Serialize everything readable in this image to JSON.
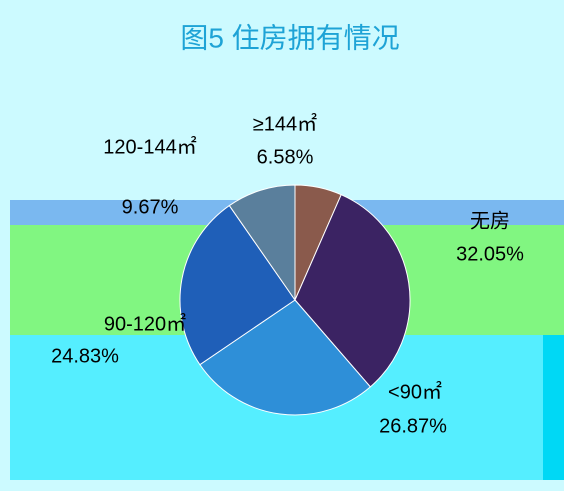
{
  "chart_data": {
    "type": "pie",
    "title": "图5 住房拥有情况",
    "categories": [
      "≥144㎡",
      "无房",
      "<90㎡",
      "90-120㎡",
      "120-144㎡"
    ],
    "values": [
      6.58,
      32.05,
      26.87,
      24.83,
      9.67
    ],
    "value_labels": [
      "6.58%",
      "32.05%",
      "26.87%",
      "24.83%",
      "9.67%"
    ],
    "colors": [
      "#8a5a4c",
      "#3b2363",
      "#2e8fd8",
      "#1f5fb8",
      "#5a7f9c"
    ]
  }
}
